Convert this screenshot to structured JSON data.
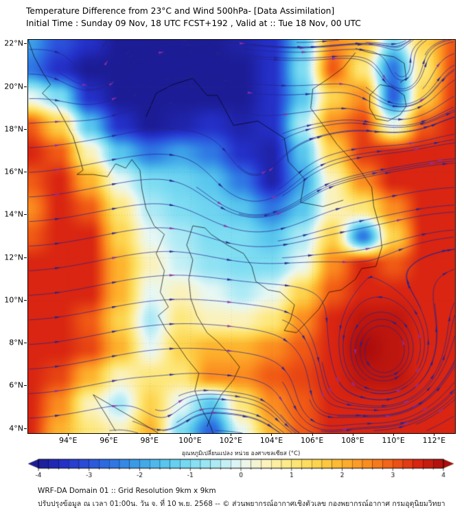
{
  "header": {
    "title": "Temperature Difference from 23°C and Wind 500hPa- [Data Assimilation]",
    "subtitle": "Initial Time : Sunday 09 Nov, 18 UTC FCST+192 , Valid at ::  Tue 18 Nov, 00 UTC"
  },
  "map": {
    "x_ticks": [
      "94°E",
      "96°E",
      "98°E",
      "100°E",
      "102°E",
      "104°E",
      "106°E",
      "108°E",
      "110°E",
      "112°E"
    ],
    "y_ticks": [
      "22°N",
      "20°N",
      "18°N",
      "16°N",
      "14°N",
      "12°N",
      "10°N",
      "8°N",
      "6°N",
      "4°N"
    ]
  },
  "colorbar": {
    "label": "อุณหภูมิเปลี่ยนแปลง หน่วย องศาเซลเซียส (°C)",
    "ticks": [
      "-4",
      "-3",
      "-2",
      "-1",
      "0",
      "1",
      "2",
      "3",
      "4"
    ]
  },
  "footer": {
    "line1": "WRF-DA Domain 01 :: Grid Resolution 9km x 9km",
    "line2": "ปรับปรุงข้อมูล ณ เวลา 01:00น. วัน จ. ที่ 10 พ.ย. 2568 -- © ส่วนพยากรณ์อากาศเชิงตัวเลข กองพยากรณ์อากาศ กรมอุตุนิยมวิทยา"
  },
  "chart_data": {
    "type": "heatmap",
    "title": "Temperature Difference from 23°C and Wind 500hPa- [Data Assimilation]",
    "value_unit": "°C",
    "value_range": [
      -4,
      4
    ],
    "lon_range": [
      92,
      113
    ],
    "lat_range": [
      3.8,
      22.2
    ],
    "lon_points": [
      92,
      93.5,
      95,
      96.5,
      98,
      99.5,
      101,
      102.5,
      104,
      105.5,
      107,
      108.5,
      110,
      111.5,
      113
    ],
    "lat_points": [
      22.2,
      20.9,
      19.6,
      18.3,
      16.9,
      15.6,
      14.3,
      13.0,
      11.7,
      10.4,
      9.1,
      7.7,
      6.4,
      5.1,
      3.8
    ],
    "values": [
      [
        -2,
        -3,
        -3.5,
        -4,
        -4,
        -4,
        -4,
        -3.8,
        -3.5,
        -1.5,
        2.5,
        2,
        -1,
        1.5,
        3
      ],
      [
        -2.5,
        -3.5,
        -4,
        -4,
        -4,
        -4,
        -4,
        -4,
        -3.5,
        -1,
        3,
        1,
        -2.5,
        1,
        3.2
      ],
      [
        0,
        -1,
        -3.5,
        -4,
        -4,
        -4,
        -4,
        -4,
        -3.5,
        -1.5,
        1.5,
        2.5,
        -2.8,
        1.5,
        3.3
      ],
      [
        3,
        1.5,
        -1.5,
        -3.5,
        -4,
        -3.8,
        -3.5,
        -3.8,
        -3.5,
        -0.5,
        2.5,
        3.2,
        0,
        3,
        3.5
      ],
      [
        3.5,
        3,
        0.5,
        -1.5,
        -2.5,
        -2,
        -2.5,
        -3.5,
        -3.8,
        -1.5,
        1.5,
        3.3,
        3.5,
        3.5,
        3.5
      ],
      [
        3,
        3.5,
        2,
        0,
        -1,
        -1.2,
        -1.5,
        -2.5,
        -3.8,
        -2,
        0.5,
        2.5,
        3.5,
        3.5,
        3.5
      ],
      [
        2.5,
        3.5,
        3,
        1,
        -0.5,
        -1,
        -1.2,
        -1.5,
        -2.5,
        -1.5,
        0.5,
        1,
        2.5,
        3.5,
        3.5
      ],
      [
        3,
        3.5,
        3.5,
        1.5,
        0,
        -0.5,
        -1,
        -1,
        -1.5,
        -0.5,
        1.5,
        -2.5,
        1.5,
        3.5,
        3.5
      ],
      [
        3.5,
        3.5,
        3.5,
        2,
        0.5,
        -0.3,
        -0.8,
        -1,
        -1,
        0,
        2.5,
        3.5,
        3,
        3.5,
        3.5
      ],
      [
        3.5,
        3.5,
        3.5,
        2,
        0,
        0.5,
        0,
        -0.5,
        0,
        1.5,
        3,
        3.5,
        3.5,
        3.5,
        3.5
      ],
      [
        3.5,
        3.5,
        3,
        1.5,
        -0.5,
        1,
        0.5,
        0.5,
        1,
        2.5,
        3.5,
        3.8,
        3.8,
        3.5,
        3.5
      ],
      [
        3.5,
        3.5,
        3.2,
        2,
        0,
        1.5,
        2,
        2,
        2.5,
        3,
        3.5,
        4,
        3.8,
        3.5,
        3.5
      ],
      [
        3.5,
        3.2,
        2,
        0.5,
        1,
        1,
        2.5,
        2.5,
        3,
        3.2,
        3.5,
        3.8,
        3.8,
        3.5,
        3.5
      ],
      [
        3.5,
        2.5,
        0.5,
        -0.5,
        1.5,
        0,
        -1.5,
        1,
        2.5,
        3,
        3.5,
        3.5,
        3.5,
        3.5,
        3.5
      ],
      [
        3.5,
        2,
        1,
        0.5,
        2,
        -1,
        -2.8,
        0,
        2,
        3,
        3.5,
        3.5,
        3.5,
        3.5,
        3.5
      ]
    ],
    "colormap": [
      [
        -4,
        "#1c1c96"
      ],
      [
        -3.5,
        "#2430c8"
      ],
      [
        -3,
        "#2b52dc"
      ],
      [
        -2.5,
        "#2f78e4"
      ],
      [
        -2,
        "#3ea2e8"
      ],
      [
        -1.5,
        "#58c6ee"
      ],
      [
        -1,
        "#7eddf2"
      ],
      [
        -0.5,
        "#aceaf5"
      ],
      [
        0,
        "#e8f8f4"
      ],
      [
        0.5,
        "#fbf2bc"
      ],
      [
        1,
        "#fde87c"
      ],
      [
        1.5,
        "#fdd44e"
      ],
      [
        2,
        "#fdb32e"
      ],
      [
        2.5,
        "#fb8d20"
      ],
      [
        3,
        "#f15b15"
      ],
      [
        3.5,
        "#d92511"
      ],
      [
        4,
        "#ab0c0c"
      ]
    ],
    "wind": {
      "base_u": 0.85,
      "stream_color": "#23238f",
      "arrow_alt_color": "#8d2fa6",
      "vortices": [
        [
          109.6,
          7.0,
          1.5,
          3.0
        ],
        [
          106.3,
          4.6,
          1.2,
          1.8
        ],
        [
          95.2,
          20.6,
          1.0,
          1.6
        ],
        [
          110.5,
          19.9,
          1.1,
          1.8
        ],
        [
          103.0,
          15.2,
          0.55,
          2.6
        ],
        [
          98.6,
          4.3,
          0.8,
          1.4
        ]
      ]
    },
    "coastlines": [
      [
        [
          92,
          22.2
        ],
        [
          92.3,
          21.4
        ],
        [
          92.7,
          20.7
        ],
        [
          93.1,
          20.1
        ],
        [
          92.7,
          19.7
        ],
        [
          93.4,
          19.1
        ],
        [
          93.8,
          18.4
        ],
        [
          94.2,
          17.7
        ],
        [
          94.5,
          16.8
        ],
        [
          94.7,
          16.1
        ],
        [
          94.4,
          15.9
        ],
        [
          95.2,
          15.9
        ],
        [
          95.9,
          15.8
        ],
        [
          96.3,
          16.4
        ],
        [
          96.8,
          16.2
        ],
        [
          97.1,
          16.6
        ],
        [
          97.5,
          16.1
        ],
        [
          97.6,
          15.2
        ],
        [
          97.8,
          14.3
        ],
        [
          98.2,
          13.5
        ],
        [
          98.7,
          13.1
        ],
        [
          98.3,
          12.2
        ],
        [
          98.7,
          11.4
        ],
        [
          98.5,
          10.4
        ],
        [
          98.9,
          9.7
        ],
        [
          98.4,
          9.3
        ],
        [
          98.8,
          8.6
        ],
        [
          99.3,
          8.0
        ],
        [
          99.8,
          7.3
        ],
        [
          100.4,
          6.6
        ],
        [
          100.2,
          5.8
        ],
        [
          100.5,
          5.0
        ],
        [
          100.9,
          4.3
        ],
        [
          101.1,
          3.8
        ]
      ],
      [
        [
          100.8,
          4.1
        ],
        [
          101.1,
          4.9
        ],
        [
          101.5,
          5.6
        ],
        [
          102.1,
          6.3
        ],
        [
          102.4,
          6.9
        ],
        [
          101.9,
          7.5
        ],
        [
          101.3,
          8.1
        ],
        [
          100.8,
          8.5
        ],
        [
          100.3,
          9.3
        ],
        [
          100.0,
          10.1
        ],
        [
          99.9,
          11.0
        ],
        [
          100.1,
          11.9
        ],
        [
          99.8,
          12.6
        ],
        [
          100.1,
          13.5
        ],
        [
          100.7,
          13.4
        ],
        [
          101.0,
          13.1
        ],
        [
          101.8,
          12.6
        ],
        [
          102.6,
          12.2
        ],
        [
          103.0,
          11.6
        ],
        [
          103.2,
          10.9
        ],
        [
          103.8,
          10.5
        ],
        [
          104.4,
          10.4
        ],
        [
          105.1,
          9.8
        ],
        [
          104.9,
          9.1
        ],
        [
          104.6,
          8.6
        ],
        [
          105.2,
          8.5
        ],
        [
          105.8,
          9.1
        ],
        [
          106.3,
          9.6
        ],
        [
          106.8,
          10.4
        ],
        [
          107.4,
          10.5
        ],
        [
          108.1,
          11.0
        ],
        [
          108.4,
          11.5
        ],
        [
          109.1,
          11.6
        ],
        [
          109.4,
          12.5
        ],
        [
          109.3,
          13.4
        ],
        [
          109.0,
          14.4
        ],
        [
          108.9,
          15.3
        ],
        [
          108.4,
          16.0
        ],
        [
          107.9,
          16.6
        ],
        [
          107.2,
          17.3
        ],
        [
          106.6,
          18.1
        ],
        [
          105.9,
          19.0
        ],
        [
          106.0,
          19.9
        ],
        [
          106.8,
          20.4
        ],
        [
          107.5,
          20.9
        ],
        [
          108.1,
          21.6
        ]
      ],
      [
        [
          108.1,
          21.8
        ],
        [
          108.8,
          21.6
        ],
        [
          109.4,
          21.5
        ],
        [
          110.0,
          21.4
        ],
        [
          110.5,
          21.1
        ],
        [
          110.6,
          20.4
        ],
        [
          110.3,
          20.2
        ]
      ],
      [
        [
          109.3,
          20.1
        ],
        [
          109.9,
          20.0
        ],
        [
          110.5,
          19.6
        ],
        [
          110.6,
          19.1
        ],
        [
          110.3,
          18.7
        ],
        [
          109.7,
          18.4
        ],
        [
          109.1,
          18.5
        ],
        [
          108.8,
          19.0
        ],
        [
          108.8,
          19.6
        ],
        [
          109.3,
          20.1
        ]
      ],
      [
        [
          97.8,
          18.6
        ],
        [
          98.3,
          19.7
        ],
        [
          99.1,
          20.1
        ],
        [
          100.1,
          20.4
        ],
        [
          100.8,
          19.6
        ],
        [
          101.3,
          19.6
        ],
        [
          101.6,
          19.1
        ],
        [
          102.1,
          18.2
        ],
        [
          103.3,
          18.4
        ],
        [
          104.6,
          17.6
        ],
        [
          104.8,
          16.5
        ],
        [
          105.6,
          15.7
        ],
        [
          105.4,
          14.6
        ],
        [
          106.5,
          14.4
        ],
        [
          107.5,
          14.7
        ]
      ],
      [
        [
          95.2,
          5.6
        ],
        [
          96.1,
          5.1
        ],
        [
          97.0,
          4.6
        ],
        [
          97.9,
          4.1
        ],
        [
          98.4,
          3.8
        ]
      ],
      [
        [
          95.2,
          5.6
        ],
        [
          95.8,
          4.7
        ],
        [
          96.3,
          3.9
        ]
      ]
    ]
  }
}
